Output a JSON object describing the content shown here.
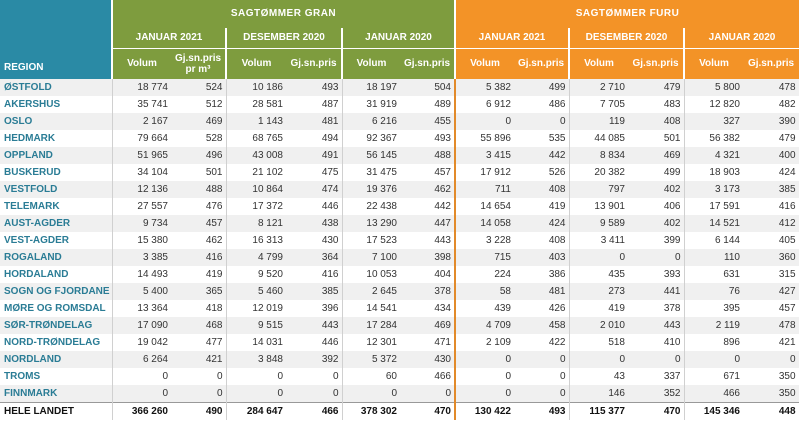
{
  "headers": {
    "region": "REGION",
    "gran_title": "SAGTØMMER GRAN",
    "furu_title": "SAGTØMMER FURU",
    "periods": [
      "JANUAR 2021",
      "DESEMBER 2020",
      "JANUAR 2020"
    ],
    "volum": "Volum",
    "pris": "Gj.sn.pris",
    "pris_sub": "pr m³"
  },
  "rows": [
    {
      "region": "ØSTFOLD",
      "g": [
        "18 774",
        "524",
        "10 186",
        "493",
        "18 197",
        "504"
      ],
      "f": [
        "5 382",
        "499",
        "2 710",
        "479",
        "5 800",
        "478"
      ]
    },
    {
      "region": "AKERSHUS",
      "g": [
        "35 741",
        "512",
        "28 581",
        "487",
        "31 919",
        "489"
      ],
      "f": [
        "6 912",
        "486",
        "7 705",
        "483",
        "12 820",
        "482"
      ]
    },
    {
      "region": "OSLO",
      "g": [
        "2 167",
        "469",
        "1 143",
        "481",
        "6 216",
        "455"
      ],
      "f": [
        "0",
        "0",
        "119",
        "408",
        "327",
        "390"
      ]
    },
    {
      "region": "HEDMARK",
      "g": [
        "79 664",
        "528",
        "68 765",
        "494",
        "92 367",
        "493"
      ],
      "f": [
        "55 896",
        "535",
        "44 085",
        "501",
        "56 382",
        "479"
      ]
    },
    {
      "region": "OPPLAND",
      "g": [
        "51 965",
        "496",
        "43 008",
        "491",
        "56 145",
        "488"
      ],
      "f": [
        "3 415",
        "442",
        "8 834",
        "469",
        "4 321",
        "400"
      ]
    },
    {
      "region": "BUSKERUD",
      "g": [
        "34 104",
        "501",
        "21 102",
        "475",
        "31 475",
        "457"
      ],
      "f": [
        "17 912",
        "526",
        "20 382",
        "499",
        "18 903",
        "424"
      ]
    },
    {
      "region": "VESTFOLD",
      "g": [
        "12 136",
        "488",
        "10 864",
        "474",
        "19 376",
        "462"
      ],
      "f": [
        "711",
        "408",
        "797",
        "402",
        "3 173",
        "385"
      ]
    },
    {
      "region": "TELEMARK",
      "g": [
        "27 557",
        "476",
        "17 372",
        "446",
        "22 438",
        "442"
      ],
      "f": [
        "14 654",
        "419",
        "13 901",
        "406",
        "17 591",
        "416"
      ]
    },
    {
      "region": "AUST-AGDER",
      "g": [
        "9 734",
        "457",
        "8 121",
        "438",
        "13 290",
        "447"
      ],
      "f": [
        "14 058",
        "424",
        "9 589",
        "402",
        "14 521",
        "412"
      ]
    },
    {
      "region": "VEST-AGDER",
      "g": [
        "15 380",
        "462",
        "16 313",
        "430",
        "17 523",
        "443"
      ],
      "f": [
        "3 228",
        "408",
        "3 411",
        "399",
        "6 144",
        "405"
      ]
    },
    {
      "region": "ROGALAND",
      "g": [
        "3 385",
        "416",
        "4 799",
        "364",
        "7 100",
        "398"
      ],
      "f": [
        "715",
        "403",
        "0",
        "0",
        "110",
        "360"
      ]
    },
    {
      "region": "HORDALAND",
      "g": [
        "14 493",
        "419",
        "9 520",
        "416",
        "10 053",
        "404"
      ],
      "f": [
        "224",
        "386",
        "435",
        "393",
        "631",
        "315"
      ]
    },
    {
      "region": "SOGN OG FJORDANE",
      "g": [
        "5 400",
        "365",
        "5 460",
        "385",
        "2 645",
        "378"
      ],
      "f": [
        "58",
        "481",
        "273",
        "441",
        "76",
        "427"
      ]
    },
    {
      "region": "MØRE OG ROMSDAL",
      "g": [
        "13 364",
        "418",
        "12 019",
        "396",
        "14 541",
        "434"
      ],
      "f": [
        "439",
        "426",
        "419",
        "378",
        "395",
        "457"
      ]
    },
    {
      "region": "SØR-TRØNDELAG",
      "g": [
        "17 090",
        "468",
        "9 515",
        "443",
        "17 284",
        "469"
      ],
      "f": [
        "4 709",
        "458",
        "2 010",
        "443",
        "2 119",
        "478"
      ]
    },
    {
      "region": "NORD-TRØNDELAG",
      "g": [
        "19 042",
        "477",
        "14 031",
        "446",
        "12 301",
        "471"
      ],
      "f": [
        "2 109",
        "422",
        "518",
        "410",
        "896",
        "421"
      ]
    },
    {
      "region": "NORDLAND",
      "g": [
        "6 264",
        "421",
        "3 848",
        "392",
        "5 372",
        "430"
      ],
      "f": [
        "0",
        "0",
        "0",
        "0",
        "0",
        "0"
      ]
    },
    {
      "region": "TROMS",
      "g": [
        "0",
        "0",
        "0",
        "0",
        "60",
        "466"
      ],
      "f": [
        "0",
        "0",
        "43",
        "337",
        "671",
        "350"
      ]
    },
    {
      "region": "FINNMARK",
      "g": [
        "0",
        "0",
        "0",
        "0",
        "0",
        "0"
      ],
      "f": [
        "0",
        "0",
        "146",
        "352",
        "466",
        "350"
      ]
    }
  ],
  "total": {
    "region": "HELE LANDET",
    "g": [
      "366 260",
      "490",
      "284 647",
      "466",
      "378 302",
      "470"
    ],
    "f": [
      "130 422",
      "493",
      "115 377",
      "470",
      "145 346",
      "448"
    ]
  },
  "colors": {
    "gran": "#7e9c3e",
    "furu": "#f39327",
    "region": "#2a8aa5"
  }
}
